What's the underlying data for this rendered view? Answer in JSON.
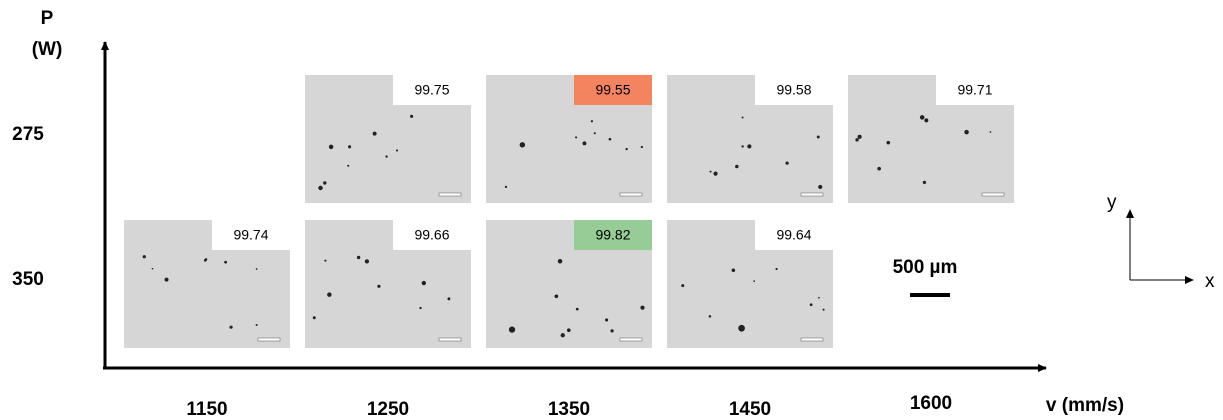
{
  "axes": {
    "y_label": [
      "P",
      "(W)"
    ],
    "x_label": "v (mm/s)"
  },
  "columns": [
    "1150",
    "1250",
    "1350",
    "1450",
    "1600"
  ],
  "rows": [
    {
      "label": "275",
      "values": [
        null,
        99.75,
        99.55,
        99.58,
        99.71
      ],
      "colors": [
        null,
        null,
        "#f4845f",
        null,
        null
      ]
    },
    {
      "label": "350",
      "values": [
        99.74,
        99.66,
        99.82,
        99.64,
        null
      ],
      "colors": [
        null,
        null,
        "#96cc96",
        null,
        null
      ]
    }
  ],
  "scale_bar": "500 µm",
  "orientation": {
    "y": "y",
    "x": "x"
  }
}
